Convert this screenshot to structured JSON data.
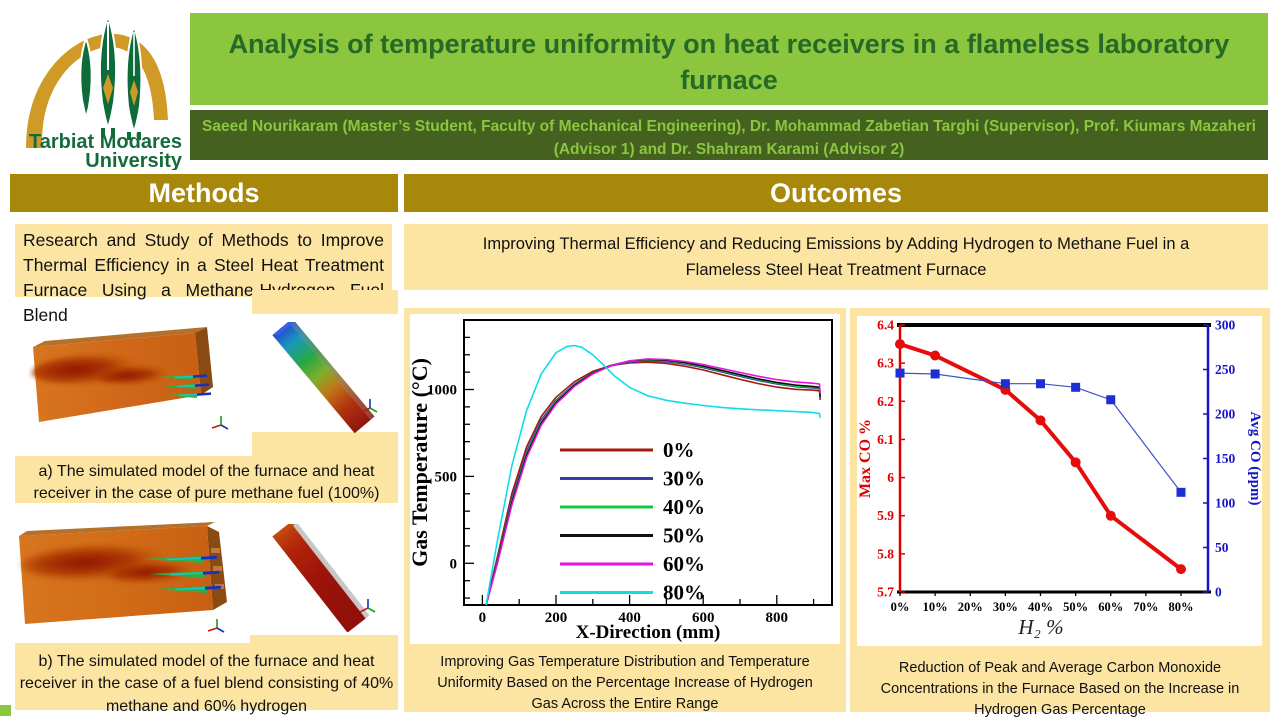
{
  "header": {
    "logo": {
      "line1": "Tarbiat Modares",
      "line2": "University"
    },
    "title": "Analysis of temperature uniformity on heat receivers in a flameless laboratory furnace",
    "authors": "Saeed Nourikaram (Master’s Student, Faculty of Mechanical Engineering), Dr.  Mohammad Zabetian Targhi (Supervisor), Prof. Kiumars Mazaheri (Advisor 1) and Dr. Shahram Karami (Advisor 2)"
  },
  "columns": {
    "methods": {
      "header": "Methods",
      "intro": "Research and Study of Methods to Improve Thermal Efficiency in a Steel Heat Treatment Furnace Using a Methane-Hydrogen Fuel Blend",
      "caption_a": "a) The simulated model of the furnace and heat receiver in the case of pure methane fuel (100%)",
      "caption_b": "b) The simulated model of the furnace and heat receiver in the case of a fuel blend consisting of 40% methane and 60% hydrogen"
    },
    "outcomes": {
      "header": "Outcomes",
      "intro": "Improving Thermal Efficiency and Reducing Emissions by Adding Hydrogen to Methane Fuel in a Flameless Steel Heat Treatment Furnace",
      "caption_temperature": "Improving Gas Temperature Distribution and Temperature Uniformity Based on the Percentage Increase of Hydrogen Gas Across the Entire Range",
      "caption_co": "Reduction of Peak and Average Carbon Monoxide Concentrations in the Furnace Based on the Increase in Hydrogen Gas Percentage"
    }
  },
  "colors": {
    "light_green": "#8cc63e",
    "title_text_green": "#266a28",
    "authors_bar_green": "#44611f",
    "gold_header": "#a8880b",
    "cream_panel": "#fce4a2",
    "logo_gold": "#d09a26",
    "logo_green": "#0e6b3a"
  },
  "chart_data": [
    {
      "type": "line",
      "title": "",
      "xlabel": "X-Direction (mm)",
      "ylabel": "Gas Temperature (°C)",
      "xlim": [
        -50,
        950
      ],
      "ylim": [
        -240,
        1400
      ],
      "xticks": [
        0,
        200,
        400,
        600,
        800
      ],
      "yticks": [
        0,
        500,
        1000
      ],
      "minor_tick_step": 100,
      "grid": false,
      "legend_position": "inside-center-right",
      "series": [
        {
          "name": "0%",
          "color": "#a51a0f",
          "points": [
            [
              10,
              -240
            ],
            [
              40,
              30
            ],
            [
              80,
              400
            ],
            [
              120,
              670
            ],
            [
              160,
              845
            ],
            [
              200,
              955
            ],
            [
              250,
              1045
            ],
            [
              300,
              1105
            ],
            [
              350,
              1138
            ],
            [
              400,
              1153
            ],
            [
              450,
              1157
            ],
            [
              500,
              1150
            ],
            [
              550,
              1134
            ],
            [
              600,
              1112
            ],
            [
              650,
              1085
            ],
            [
              700,
              1058
            ],
            [
              750,
              1034
            ],
            [
              800,
              1014
            ],
            [
              850,
              1001
            ],
            [
              900,
              996
            ],
            [
              916,
              992
            ],
            [
              918,
              940
            ]
          ]
        },
        {
          "name": "30%",
          "color": "#3a3aad",
          "points": [
            [
              10,
              -240
            ],
            [
              40,
              12
            ],
            [
              80,
              372
            ],
            [
              120,
              645
            ],
            [
              160,
              825
            ],
            [
              200,
              938
            ],
            [
              250,
              1032
            ],
            [
              300,
              1097
            ],
            [
              350,
              1136
            ],
            [
              400,
              1158
            ],
            [
              450,
              1165
            ],
            [
              500,
              1160
            ],
            [
              550,
              1146
            ],
            [
              600,
              1126
            ],
            [
              650,
              1101
            ],
            [
              700,
              1076
            ],
            [
              750,
              1052
            ],
            [
              800,
              1032
            ],
            [
              850,
              1017
            ],
            [
              900,
              1008
            ],
            [
              916,
              1004
            ],
            [
              918,
              950
            ]
          ]
        },
        {
          "name": "40%",
          "color": "#0ecb3c",
          "points": [
            [
              10,
              -240
            ],
            [
              40,
              5
            ],
            [
              80,
              358
            ],
            [
              120,
              632
            ],
            [
              160,
              815
            ],
            [
              200,
              930
            ],
            [
              250,
              1028
            ],
            [
              300,
              1096
            ],
            [
              350,
              1138
            ],
            [
              400,
              1162
            ],
            [
              450,
              1170
            ],
            [
              500,
              1165
            ],
            [
              550,
              1151
            ],
            [
              600,
              1131
            ],
            [
              650,
              1106
            ],
            [
              700,
              1081
            ],
            [
              750,
              1057
            ],
            [
              800,
              1037
            ],
            [
              850,
              1021
            ],
            [
              900,
              1012
            ],
            [
              916,
              1008
            ],
            [
              918,
              955
            ]
          ]
        },
        {
          "name": "50%",
          "color": "#111111",
          "points": [
            [
              10,
              -240
            ],
            [
              40,
              0
            ],
            [
              80,
              348
            ],
            [
              120,
              622
            ],
            [
              160,
              806
            ],
            [
              200,
              924
            ],
            [
              250,
              1024
            ],
            [
              300,
              1094
            ],
            [
              350,
              1139
            ],
            [
              400,
              1164
            ],
            [
              450,
              1173
            ],
            [
              500,
              1168
            ],
            [
              550,
              1155
            ],
            [
              600,
              1135
            ],
            [
              650,
              1110
            ],
            [
              700,
              1085
            ],
            [
              750,
              1061
            ],
            [
              800,
              1041
            ],
            [
              850,
              1026
            ],
            [
              900,
              1017
            ],
            [
              916,
              1013
            ],
            [
              918,
              958
            ]
          ]
        },
        {
          "name": "60%",
          "color": "#ea10e0",
          "points": [
            [
              10,
              -240
            ],
            [
              40,
              -8
            ],
            [
              80,
              335
            ],
            [
              120,
              608
            ],
            [
              160,
              795
            ],
            [
              200,
              916
            ],
            [
              250,
              1018
            ],
            [
              300,
              1090
            ],
            [
              350,
              1137
            ],
            [
              400,
              1165
            ],
            [
              450,
              1176
            ],
            [
              500,
              1172
            ],
            [
              550,
              1161
            ],
            [
              600,
              1144
            ],
            [
              650,
              1121
            ],
            [
              700,
              1098
            ],
            [
              750,
              1076
            ],
            [
              800,
              1057
            ],
            [
              850,
              1044
            ],
            [
              900,
              1036
            ],
            [
              916,
              1032
            ],
            [
              918,
              976
            ]
          ]
        },
        {
          "name": "80%",
          "color": "#10dce8",
          "points": [
            [
              10,
              -240
            ],
            [
              40,
              120
            ],
            [
              80,
              560
            ],
            [
              120,
              880
            ],
            [
              160,
              1090
            ],
            [
              200,
              1212
            ],
            [
              230,
              1248
            ],
            [
              250,
              1253
            ],
            [
              270,
              1243
            ],
            [
              300,
              1200
            ],
            [
              330,
              1140
            ],
            [
              360,
              1076
            ],
            [
              400,
              1012
            ],
            [
              450,
              963
            ],
            [
              500,
              938
            ],
            [
              550,
              921
            ],
            [
              600,
              908
            ],
            [
              650,
              897
            ],
            [
              700,
              889
            ],
            [
              750,
              883
            ],
            [
              800,
              878
            ],
            [
              850,
              873
            ],
            [
              900,
              867
            ],
            [
              916,
              862
            ],
            [
              918,
              838
            ]
          ]
        }
      ]
    },
    {
      "type": "dual-line",
      "title": "",
      "xlabel": "H₂ %",
      "x_categories": [
        "0%",
        "10%",
        "20%",
        "30%",
        "40%",
        "50%",
        "60%",
        "70%",
        "80%"
      ],
      "left_axis": {
        "label": "Max CO %",
        "color": "#e00000",
        "min": 5.7,
        "max": 6.4,
        "ticks": [
          5.7,
          5.8,
          5.9,
          6,
          6.1,
          6.2,
          6.3,
          6.4
        ]
      },
      "right_axis": {
        "label": "Avg CO (ppm)",
        "color": "#1515c8",
        "min": 0,
        "max": 300,
        "ticks": [
          0,
          50,
          100,
          150,
          200,
          250,
          300
        ]
      },
      "series": [
        {
          "name": "Max CO %",
          "axis": "left",
          "color": "#e60c0c",
          "marker": "circle",
          "x_percent": [
            0,
            10,
            30,
            40,
            50,
            60,
            80
          ],
          "values": [
            6.35,
            6.32,
            6.23,
            6.15,
            6.04,
            5.9,
            5.76
          ]
        },
        {
          "name": "Avg CO (ppm)",
          "axis": "right",
          "color": "#3a55c8",
          "marker": "square",
          "x_percent": [
            0,
            10,
            30,
            40,
            50,
            60,
            80
          ],
          "values": [
            246,
            245,
            234,
            234,
            230,
            216,
            112
          ]
        }
      ]
    }
  ]
}
